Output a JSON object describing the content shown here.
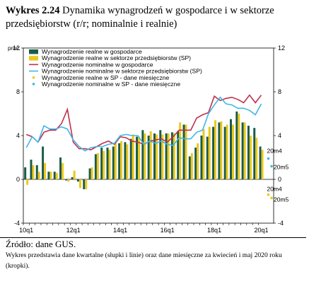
{
  "title": {
    "label": "Wykres 2.24",
    "text": "Dynamika wynagrodzeń w gospodarce i w sektorze przedsiębiorstw (r/r; nominalnie i realnie)"
  },
  "source": "Źródło: dane GUS.",
  "note": "Wykres przedstawia dane kwartalne (słupki i linie) oraz dane miesięczne za kwiecień i maj 2020 roku (kropki).",
  "colors": {
    "real_economy": "#1a5c4a",
    "real_sp": "#ecc81d",
    "nominal_economy": "#c0304a",
    "nominal_sp": "#41b6e6",
    "real_sp_monthly": "#ecc81d",
    "nominal_sp_monthly": "#41b6e6"
  },
  "chart_data": {
    "type": "bar",
    "unit_label": "proc.",
    "ylim": [
      -4,
      12
    ],
    "yticks": [
      -4,
      0,
      4,
      8,
      12
    ],
    "grid": false,
    "legend_position": "top-left",
    "x": [
      "10q1",
      "10q2",
      "10q3",
      "10q4",
      "11q1",
      "11q2",
      "11q3",
      "11q4",
      "12q1",
      "12q2",
      "12q3",
      "12q4",
      "13q1",
      "13q2",
      "13q3",
      "13q4",
      "14q1",
      "14q2",
      "14q3",
      "14q4",
      "15q1",
      "15q2",
      "15q3",
      "15q4",
      "16q1",
      "16q2",
      "16q3",
      "16q4",
      "17q1",
      "17q2",
      "17q3",
      "17q4",
      "18q1",
      "18q2",
      "18q3",
      "18q4",
      "19q1",
      "19q2",
      "19q3",
      "19q4",
      "20q1"
    ],
    "x_tick_labels": [
      "10q1",
      "12q1",
      "14q1",
      "16q1",
      "18q1",
      "20q1"
    ],
    "series": [
      {
        "name": "Wynagrodzenie realne w gospodarce",
        "kind": "bar",
        "values": [
          1.1,
          1.8,
          1.3,
          3.0,
          0.7,
          0.7,
          2.0,
          -0.1,
          0.2,
          -0.2,
          -0.9,
          1.0,
          2.3,
          2.9,
          2.9,
          3.0,
          3.3,
          3.4,
          3.7,
          3.9,
          4.5,
          4.0,
          4.2,
          4.5,
          4.2,
          4.3,
          4.4,
          5.0,
          2.1,
          2.9,
          4.0,
          3.9,
          4.8,
          5.2,
          4.8,
          5.5,
          6.2,
          5.2,
          4.9,
          4.7,
          3.0
        ]
      },
      {
        "name": "Wynagrodzenie realne w sektorze przedsiębiorstw (SP)",
        "kind": "bar",
        "values": [
          -0.5,
          1.3,
          0.7,
          1.5,
          0.7,
          0.6,
          1.5,
          -0.2,
          0.8,
          -0.8,
          -0.9,
          1.1,
          2.4,
          2.6,
          2.7,
          3.3,
          3.5,
          3.2,
          4.1,
          3.9,
          4.2,
          4.4,
          4.1,
          4.1,
          4.2,
          4.2,
          5.2,
          5.0,
          2.4,
          3.3,
          4.6,
          4.8,
          5.4,
          5.3,
          5.0,
          5.0,
          6.0,
          5.2,
          4.0,
          3.8,
          2.7
        ]
      },
      {
        "name": "Wynagrodzenie nominalne w gospodarce",
        "kind": "line",
        "values": [
          4.1,
          3.9,
          3.4,
          4.3,
          4.5,
          4.5,
          5.1,
          6.4,
          3.4,
          2.8,
          2.8,
          2.7,
          3.0,
          3.3,
          3.5,
          3.2,
          3.9,
          3.8,
          3.5,
          3.4,
          3.2,
          3.5,
          3.6,
          3.7,
          3.4,
          3.9,
          4.5,
          4.5,
          4.5,
          5.6,
          5.9,
          6.1,
          7.6,
          7.2,
          7.4,
          7.5,
          7.3,
          7.0,
          7.7,
          7.0,
          7.7
        ]
      },
      {
        "name": "Wynagrodzenie nominalne w sektorze przedsiębiorstw (SP)",
        "kind": "line",
        "values": [
          2.9,
          3.9,
          3.4,
          4.9,
          4.6,
          4.6,
          4.8,
          4.6,
          3.6,
          3.0,
          2.6,
          2.9,
          3.0,
          3.0,
          3.2,
          3.3,
          4.0,
          4.1,
          4.0,
          4.0,
          3.2,
          3.5,
          3.3,
          3.5,
          3.2,
          3.1,
          3.8,
          3.7,
          3.7,
          4.3,
          4.5,
          6.0,
          6.8,
          7.5,
          6.9,
          6.8,
          6.5,
          6.5,
          6.3,
          5.9,
          6.9
        ]
      },
      {
        "name": "Wynagrodzenie realne w SP - dane miesięczne",
        "kind": "point",
        "x": [
          "20m4",
          "20m5"
        ],
        "values": [
          -1.4,
          -1.7
        ]
      },
      {
        "name": "Wynagrodzenie nominalne w SP - dane miesięczne",
        "kind": "point",
        "x": [
          "20m4",
          "20m5"
        ],
        "values": [
          1.9,
          1.2
        ]
      }
    ],
    "annotations": [
      "20m4",
      "20m5",
      "20m4",
      "20m5"
    ]
  }
}
